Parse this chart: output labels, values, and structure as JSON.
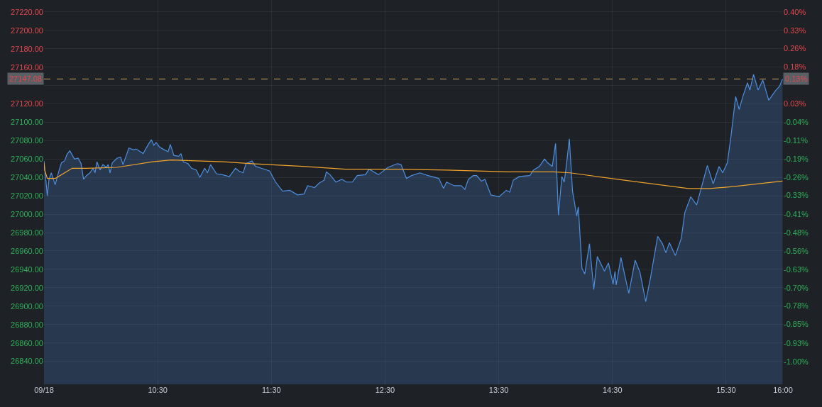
{
  "chart_data": {
    "type": "area",
    "x": [
      9.5,
      9.508,
      9.529,
      9.544,
      9.564,
      9.598,
      9.633,
      9.654,
      9.681,
      9.702,
      9.727,
      9.768,
      9.8,
      9.826,
      9.848,
      9.873,
      9.904,
      9.931,
      9.949,
      9.966,
      9.993,
      10.018,
      10.049,
      10.064,
      10.081,
      10.101,
      10.143,
      10.174,
      10.195,
      10.247,
      10.288,
      10.31,
      10.372,
      10.413,
      10.444,
      10.466,
      10.486,
      10.517,
      10.559,
      10.591,
      10.611,
      10.642,
      10.684,
      10.705,
      10.725,
      10.767,
      10.798,
      10.84,
      10.871,
      10.913,
      10.938,
      10.965,
      11.017,
      11.069,
      11.131,
      11.184,
      11.215,
      11.252,
      11.277,
      11.329,
      11.36,
      11.412,
      11.485,
      11.537,
      11.599,
      11.662,
      11.73,
      11.787,
      11.818,
      11.88,
      11.922,
      11.964,
      11.984,
      12.016,
      12.067,
      12.12,
      12.161,
      12.213,
      12.255,
      12.328,
      12.359,
      12.442,
      12.526,
      12.609,
      12.64,
      12.688,
      12.733,
      12.806,
      12.879,
      12.973,
      13.014,
      13.041,
      13.108,
      13.17,
      13.202,
      13.233,
      13.275,
      13.306,
      13.347,
      13.378,
      13.431,
      13.503,
      13.566,
      13.597,
      13.628,
      13.68,
      13.774,
      13.805,
      13.857,
      13.903,
      13.93,
      13.971,
      14.0,
      14.025,
      14.055,
      14.076,
      14.09,
      14.121,
      14.149,
      14.186,
      14.2,
      14.232,
      14.257,
      14.298,
      14.336,
      14.367,
      14.43,
      14.465,
      14.506,
      14.523,
      14.533,
      14.575,
      14.606,
      14.644,
      14.7,
      14.742,
      14.793,
      14.835,
      14.898,
      14.939,
      14.97,
      15.001,
      15.054,
      15.106,
      15.137,
      15.189,
      15.241,
      15.335,
      15.386,
      15.438,
      15.47,
      15.511,
      15.543,
      15.584,
      15.615,
      15.647,
      15.688,
      15.709,
      15.741,
      15.782,
      15.823,
      15.875,
      15.938,
      15.969,
      15.996
    ],
    "series": [
      {
        "color": "#4d8fe0",
        "values": [
          27058,
          27048,
          27020,
          27038,
          27045,
          27032,
          27048,
          27056,
          27058,
          27065,
          27069,
          27060,
          27061,
          27055,
          27038,
          27042,
          27045,
          27050,
          27045,
          27057,
          27048,
          27054,
          27051,
          27054,
          27045,
          27056,
          27061,
          27062,
          27054,
          27072,
          27070,
          27071,
          27066,
          27075,
          27081,
          27075,
          27078,
          27073,
          27070,
          27068,
          27076,
          27064,
          27063,
          27066,
          27057,
          27055,
          27050,
          27048,
          27040,
          27050,
          27045,
          27054,
          27044,
          27043,
          27041,
          27050,
          27047,
          27045,
          27055,
          27058,
          27052,
          27050,
          27047,
          27035,
          27025,
          27026,
          27021,
          27022,
          27031,
          27029,
          27034,
          27037,
          27046,
          27043,
          27035,
          27038,
          27035,
          27035,
          27042,
          27043,
          27049,
          27043,
          27051,
          27055,
          27054,
          27039,
          27042,
          27045,
          27042,
          27039,
          27028,
          27035,
          27031,
          27031,
          27027,
          27038,
          27042,
          27042,
          27036,
          27038,
          27021,
          27019,
          27026,
          27024,
          27037,
          27041,
          27042,
          27048,
          27052,
          27060,
          27056,
          27052,
          27077,
          26999,
          27041,
          27035,
          27048,
          27082,
          27025,
          26998,
          27008,
          26941,
          26935,
          26968,
          26918,
          26954,
          26938,
          26947,
          26924,
          26938,
          26923,
          26953,
          26935,
          26914,
          26950,
          26937,
          26905,
          26931,
          26976,
          26968,
          26958,
          26969,
          26955,
          26974,
          27002,
          27019,
          27010,
          27053,
          27033,
          27052,
          27045,
          27056,
          27085,
          27128,
          27114,
          27128,
          27143,
          27135,
          27152,
          27135,
          27146,
          27124,
          27135,
          27139,
          27147
        ]
      },
      {
        "type": "line",
        "color": "#f0a32a",
        "x": [
          9.5,
          9.506,
          9.529,
          9.6,
          9.748,
          9.873,
          10.143,
          10.455,
          10.622,
          11.079,
          11.329,
          11.777,
          12.151,
          12.609,
          13.046,
          13.587,
          13.981,
          14.127,
          14.544,
          15.168,
          15.355,
          15.563,
          15.996
        ],
        "values": [
          27056,
          27048,
          27039,
          27039,
          27050,
          27050,
          27051,
          27057,
          27059,
          27057,
          27055,
          27052,
          27049,
          27049,
          27048,
          27046,
          27046,
          27045,
          27038,
          27028,
          27028,
          27030,
          27036
        ]
      }
    ],
    "xlim": [
      9.5,
      16.0
    ],
    "xticks": [
      {
        "value": 9.5,
        "label": "09/18"
      },
      {
        "value": 10.5,
        "label": "10:30"
      },
      {
        "value": 11.5,
        "label": "11:30"
      },
      {
        "value": 12.5,
        "label": "12:30"
      },
      {
        "value": 13.5,
        "label": "13:30"
      },
      {
        "value": 14.5,
        "label": "14:30"
      },
      {
        "value": 15.5,
        "label": "15:30"
      },
      {
        "value": 16.0,
        "label": "16:00"
      }
    ],
    "ylim": [
      26815,
      27233
    ],
    "yticks": [
      {
        "value": 27220,
        "label": "27220.00"
      },
      {
        "value": 27200,
        "label": "27200.00"
      },
      {
        "value": 27180,
        "label": "27180.00"
      },
      {
        "value": 27160,
        "label": "27160.00"
      },
      {
        "value": 27140,
        "label": null
      },
      {
        "value": 27120,
        "label": "27120.00"
      },
      {
        "value": 27100,
        "label": "27100.00"
      },
      {
        "value": 27080,
        "label": "27080.00"
      },
      {
        "value": 27060,
        "label": "27060.00"
      },
      {
        "value": 27040,
        "label": "27040.00"
      },
      {
        "value": 27020,
        "label": "27020.00"
      },
      {
        "value": 27000,
        "label": "27000.00"
      },
      {
        "value": 26980,
        "label": "26980.00"
      },
      {
        "value": 26960,
        "label": "26960.00"
      },
      {
        "value": 26940,
        "label": "26940.00"
      },
      {
        "value": 26920,
        "label": "26920.00"
      },
      {
        "value": 26900,
        "label": "26900.00"
      },
      {
        "value": 26880,
        "label": "26880.00"
      },
      {
        "value": 26860,
        "label": "26860.00"
      },
      {
        "value": 26840,
        "label": "26840.00"
      }
    ],
    "y2lim": [
      -1.092,
      0.45
    ],
    "y2ticks": [
      {
        "value": 0.402,
        "label": "0.40%"
      },
      {
        "value": 0.328,
        "label": "0.33%"
      },
      {
        "value": 0.255,
        "label": "0.26%"
      },
      {
        "value": 0.181,
        "label": "0.18%"
      },
      {
        "value": 0.107,
        "label": null
      },
      {
        "value": 0.033,
        "label": "0.03%"
      },
      {
        "value": -0.041,
        "label": "-0.04%"
      },
      {
        "value": -0.114,
        "label": "-0.11%"
      },
      {
        "value": -0.188,
        "label": "-0.19%"
      },
      {
        "value": -0.262,
        "label": "-0.26%"
      },
      {
        "value": -0.334,
        "label": "-0.33%"
      },
      {
        "value": -0.409,
        "label": "-0.41%"
      },
      {
        "value": -0.483,
        "label": "-0.48%"
      },
      {
        "value": -0.557,
        "label": "-0.56%"
      },
      {
        "value": -0.631,
        "label": "-0.63%"
      },
      {
        "value": -0.705,
        "label": "-0.70%"
      },
      {
        "value": -0.778,
        "label": "-0.78%"
      },
      {
        "value": -0.852,
        "label": "-0.85%"
      },
      {
        "value": -0.926,
        "label": "-0.93%"
      },
      {
        "value": -1.0,
        "label": "-1.00%"
      }
    ],
    "ref_lines": [
      {
        "axis": "y",
        "value": 27147.08,
        "label": "27147.08",
        "color": "#c8a56a",
        "line_style": "dashed"
      }
    ],
    "annotations": [
      {
        "text": "0.13%",
        "x": 16.0,
        "y": 27147.08
      }
    ],
    "grid": true
  }
}
